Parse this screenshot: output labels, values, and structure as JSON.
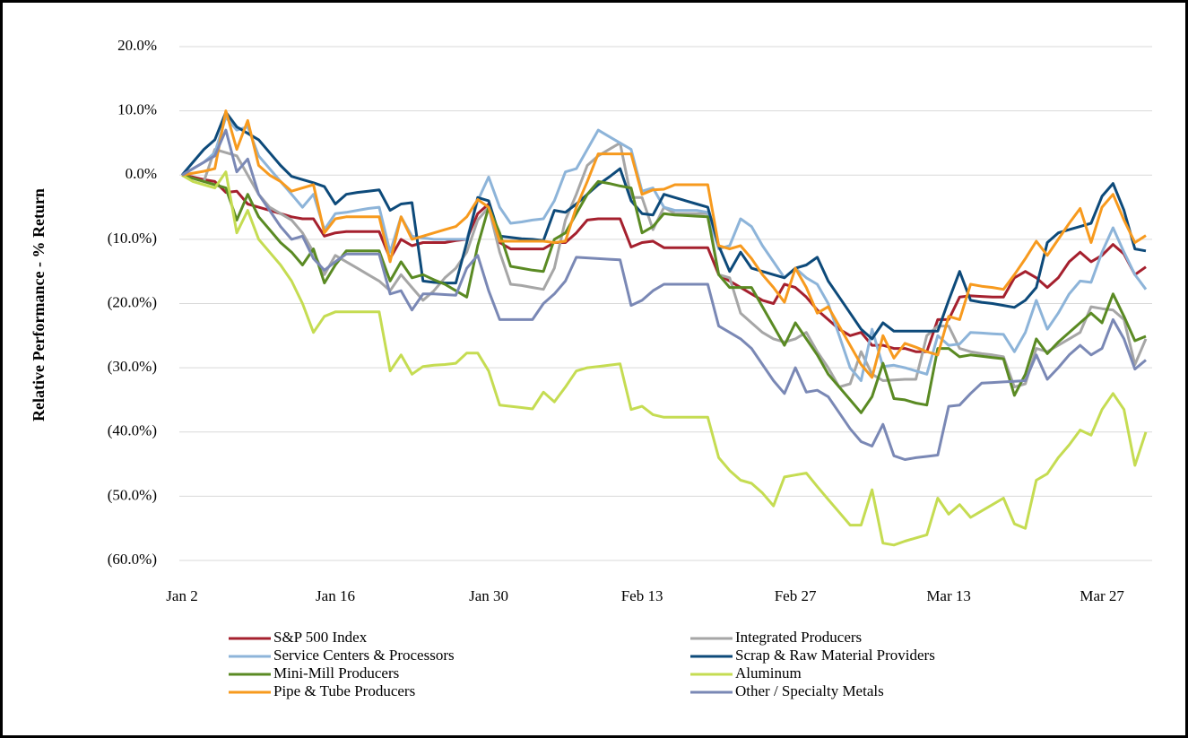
{
  "chart_data": {
    "type": "line",
    "y_label": "Relative Performance - % Return",
    "categories": [
      "Jan 2",
      null,
      null,
      null,
      null,
      null,
      null,
      null,
      null,
      null,
      null,
      null,
      null,
      null,
      "Jan 16",
      null,
      null,
      null,
      null,
      null,
      null,
      null,
      null,
      null,
      null,
      null,
      null,
      null,
      "Jan 30",
      null,
      null,
      null,
      null,
      null,
      null,
      null,
      null,
      null,
      null,
      null,
      null,
      null,
      "Feb 13",
      null,
      null,
      null,
      null,
      null,
      null,
      null,
      null,
      null,
      null,
      null,
      null,
      null,
      "Feb 27",
      null,
      null,
      null,
      null,
      null,
      null,
      null,
      null,
      null,
      null,
      null,
      null,
      null,
      "Mar 13",
      null,
      null,
      null,
      null,
      null,
      null,
      null,
      null,
      null,
      null,
      null,
      null,
      null,
      "Mar 27",
      null,
      null,
      null,
      null
    ],
    "ylim": [
      -60,
      20
    ],
    "yticks": [
      {
        "value": 20,
        "label": "20.0%"
      },
      {
        "value": 10,
        "label": "10.0%"
      },
      {
        "value": 0,
        "label": "0.0%"
      },
      {
        "value": -10,
        "label": "(10.0%)"
      },
      {
        "value": -20,
        "label": "(20.0%)"
      },
      {
        "value": -30,
        "label": "(30.0%)"
      },
      {
        "value": -40,
        "label": "(40.0%)"
      },
      {
        "value": -50,
        "label": "(50.0%)"
      },
      {
        "value": -60,
        "label": "(60.0%)"
      }
    ],
    "grid": true,
    "legend": "bottom",
    "series": [
      {
        "name": "S&P 500 Index",
        "color": "#a5202e",
        "values": [
          0,
          -0.3,
          -0.7,
          -1,
          -2.7,
          -2.5,
          -4.5,
          -5,
          -5.5,
          -6,
          -6.5,
          -6.8,
          -6.8,
          -9.5,
          -9,
          -8.8,
          -8.8,
          -8.8,
          -8.8,
          -13,
          -10,
          -11,
          -10.5,
          -10.5,
          -10.5,
          -10.2,
          -10,
          -6,
          -4.5,
          -10.5,
          -11.5,
          -11.5,
          -11.5,
          -11.5,
          -10.5,
          -10.5,
          -9,
          -7,
          -6.8,
          -6.8,
          -6.8,
          -11.2,
          -10.5,
          -10.3,
          -11.3,
          -11.3,
          -11.3,
          -11.3,
          -11.3,
          -15.5,
          -16.5,
          -17.5,
          -18.5,
          -19.5,
          -20,
          -17,
          -17.5,
          -19,
          -21,
          -22.5,
          -24,
          -25,
          -24.5,
          -26.5,
          -26.5,
          -27,
          -27,
          -27.5,
          -27.5,
          -22.5,
          -22.5,
          -19,
          -18.8,
          -18.9,
          -19,
          -19,
          -16,
          -15,
          -16,
          -17.5,
          -16,
          -13.5,
          -12,
          -13.5,
          -12.5,
          -10.8,
          -12.3,
          -15.5,
          -14.3
        ]
      },
      {
        "name": "Integrated Producers",
        "color": "#a6a6a6",
        "values": [
          0,
          -0.5,
          -1,
          4,
          3.5,
          3,
          0,
          -3,
          -5,
          -6,
          -7,
          -9,
          -12,
          -15.5,
          -12.5,
          -13.5,
          -14.5,
          -15.5,
          -16.5,
          -18,
          -15.5,
          -17.5,
          -19.5,
          -18,
          -16,
          -14.5,
          -12,
          -7,
          -5,
          -12,
          -17,
          -17.2,
          -17.5,
          -17.8,
          -14.5,
          -7,
          -3,
          1.5,
          3,
          4,
          5,
          -3.5,
          -3.5,
          -8.5,
          -5,
          -6,
          -6,
          -6,
          -6,
          -15.5,
          -16,
          -21.5,
          -23,
          -24.5,
          -25.5,
          -26,
          -25.5,
          -24.5,
          -27.5,
          -30,
          -33,
          -32.5,
          -27.5,
          -31,
          -32,
          -31.9,
          -31.8,
          -31.8,
          -25,
          -23.5,
          -23.5,
          -27,
          -27.5,
          -27.8,
          -28,
          -28.3,
          -33,
          -32.5,
          -27,
          -27.5,
          -26.5,
          -25.5,
          -24.5,
          -20.5,
          -20.8,
          -21,
          -22.5,
          -29.5,
          -25.5
        ]
      },
      {
        "name": "Service Centers & Processors",
        "color": "#8db4d9",
        "values": [
          0,
          1,
          2,
          3.5,
          9,
          7,
          7.5,
          3,
          1,
          -1,
          -3,
          -5,
          -3,
          -8.5,
          -6,
          -5.8,
          -5.5,
          -5.2,
          -5,
          -12,
          -6.5,
          -9.5,
          -9.8,
          -10,
          -10,
          -10,
          -10,
          -4,
          -0.3,
          -5,
          -7.5,
          -7.3,
          -7,
          -6.8,
          -4,
          0.5,
          1,
          4,
          7,
          6,
          5,
          4,
          -2.5,
          -2,
          -5,
          -5.5,
          -5.5,
          -5.5,
          -5.8,
          -11.5,
          -11,
          -6.8,
          -8,
          -11,
          -13.5,
          -16,
          -14.5,
          -16,
          -17,
          -20,
          -25,
          -30,
          -32,
          -24,
          -29.8,
          -29.6,
          -30,
          -30.5,
          -31,
          -25,
          -26.5,
          -26.3,
          -24.5,
          -24.6,
          -24.7,
          -24.8,
          -27.5,
          -24.5,
          -19.5,
          -24,
          -21.5,
          -18.5,
          -16.5,
          -16.7,
          -12,
          -8.2,
          -12,
          -15.5,
          -17.8
        ]
      },
      {
        "name": "Scrap & Raw Material Providers",
        "color": "#0d4a7a",
        "values": [
          0,
          2,
          4,
          5.5,
          9.8,
          7.5,
          6.5,
          5.5,
          3.5,
          1.5,
          -0.2,
          -0.7,
          -1.2,
          -1.8,
          -4.5,
          -3,
          -2.7,
          -2.5,
          -2.3,
          -5.5,
          -4.5,
          -4.3,
          -16.5,
          -16.7,
          -16.8,
          -16.8,
          -10.5,
          -3.5,
          -4,
          -9.5,
          -9.7,
          -9.9,
          -10,
          -10.2,
          -5.5,
          -5.8,
          -4.5,
          -3,
          -1.5,
          -0.3,
          1,
          -4,
          -6,
          -6.2,
          -3,
          -3.5,
          -4,
          -4.5,
          -5,
          -11,
          -15,
          -12,
          -14.5,
          -15,
          -15.5,
          -16,
          -14.5,
          -14,
          -12.8,
          -16.5,
          -19,
          -21.5,
          -24,
          -25.5,
          -23,
          -24.3,
          -24.3,
          -24.3,
          -24.3,
          -24.3,
          -19.5,
          -15,
          -19.5,
          -19.8,
          -20,
          -20.3,
          -20.6,
          -19.5,
          -17.5,
          -10.5,
          -9,
          -8.5,
          -8,
          -7.5,
          -3.3,
          -1.3,
          -5.5,
          -11.5,
          -11.8
        ]
      },
      {
        "name": "Mini-Mill Producers",
        "color": "#5a8a23",
        "values": [
          0,
          -0.5,
          -1,
          -1.5,
          -2,
          -7,
          -3,
          -6.5,
          -8.5,
          -10.5,
          -12,
          -14,
          -11.5,
          -16.8,
          -14,
          -11.8,
          -11.8,
          -11.8,
          -11.8,
          -16.5,
          -13.5,
          -16,
          -15.5,
          -16.3,
          -17,
          -18,
          -19,
          -11,
          -5,
          -9,
          -14.2,
          -14.5,
          -14.8,
          -15,
          -10,
          -9,
          -6,
          -3,
          -1,
          -1.3,
          -1.7,
          -2,
          -9,
          -8,
          -6,
          -6.2,
          -6.3,
          -6.4,
          -6.5,
          -15.5,
          -17.5,
          -17.5,
          -17.5,
          -20.5,
          -23.5,
          -26.5,
          -23,
          -25.5,
          -28,
          -31,
          -33,
          -35,
          -37,
          -34.5,
          -29.3,
          -34.8,
          -35,
          -35.5,
          -35.8,
          -27,
          -27,
          -28.3,
          -28,
          -28.2,
          -28.4,
          -28.6,
          -34.3,
          -31,
          -25.5,
          -27.8,
          -26,
          -24.5,
          -23,
          -21.5,
          -23,
          -18.5,
          -22,
          -25.8,
          -25.1
        ]
      },
      {
        "name": "Aluminum",
        "color": "#c5dc52",
        "values": [
          0,
          -1,
          -1.5,
          -2,
          0.5,
          -9,
          -5.5,
          -10,
          -12,
          -14,
          -16.5,
          -20,
          -24.5,
          -22,
          -21.3,
          -21.3,
          -21.3,
          -21.3,
          -21.3,
          -30.5,
          -28,
          -31,
          -29.8,
          -29.6,
          -29.5,
          -29.3,
          -27.7,
          -27.7,
          -30.5,
          -35.8,
          -36,
          -36.2,
          -36.4,
          -33.8,
          -35.3,
          -33,
          -30.5,
          -30,
          -29.8,
          -29.6,
          -29.4,
          -36.5,
          -36,
          -37.3,
          -37.7,
          -37.7,
          -37.7,
          -37.7,
          -37.7,
          -44,
          -46,
          -47.5,
          -48,
          -49.5,
          -51.5,
          -47,
          -46.7,
          -46.4,
          -48.5,
          -50.5,
          -52.5,
          -54.5,
          -54.5,
          -49,
          -57.3,
          -57.6,
          -57,
          -56.5,
          -56,
          -50.3,
          -52.8,
          -51.3,
          -53.3,
          -52.3,
          -51.3,
          -50.3,
          -54.3,
          -55,
          -47.5,
          -46.5,
          -44,
          -42,
          -39.7,
          -40.5,
          -36.5,
          -34,
          -36.5,
          -45.2,
          -40
        ]
      },
      {
        "name": "Pipe & Tube Producers",
        "color": "#f79a1e",
        "values": [
          0,
          0.3,
          0.6,
          1,
          10,
          4,
          8.5,
          1.5,
          0,
          -1,
          -2.5,
          -2,
          -1.5,
          -9,
          -6.8,
          -6.5,
          -6.5,
          -6.5,
          -6.5,
          -13.5,
          -6.5,
          -10,
          -9.5,
          -9,
          -8.5,
          -8,
          -6.5,
          -3.8,
          -5,
          -10.3,
          -10.3,
          -10.3,
          -10.3,
          -10.3,
          -10.5,
          -10.3,
          -5,
          -1,
          3.3,
          3.3,
          3.3,
          3.3,
          -3,
          -2.3,
          -2.2,
          -1.5,
          -1.5,
          -1.5,
          -1.5,
          -11,
          -11.5,
          -11,
          -13,
          -15.5,
          -17.5,
          -19.8,
          -14.5,
          -17.5,
          -21.5,
          -20.5,
          -23.5,
          -26.5,
          -29.5,
          -31.5,
          -25,
          -28.5,
          -26.2,
          -26.8,
          -27.5,
          -28,
          -22,
          -22.5,
          -17,
          -17.3,
          -17.5,
          -17.8,
          -15.5,
          -13,
          -10.3,
          -12.5,
          -10,
          -7.5,
          -5.2,
          -10.5,
          -5,
          -3,
          -7,
          -10.5,
          -9.4
        ]
      },
      {
        "name": "Other / Specialty Metals",
        "color": "#7a88b5",
        "values": [
          0,
          1,
          2,
          3,
          7,
          0.5,
          2.5,
          -3,
          -5.5,
          -8,
          -10,
          -9.5,
          -13,
          -14.8,
          -13.5,
          -12.3,
          -12.3,
          -12.3,
          -12.3,
          -18.5,
          -18,
          -21,
          -18.5,
          -18.5,
          -18.6,
          -18.7,
          -14.5,
          -12.5,
          -18,
          -22.5,
          -22.5,
          -22.5,
          -22.5,
          -20,
          -18.5,
          -16.5,
          -12.8,
          -12.9,
          -13,
          -13.1,
          -13.2,
          -20.3,
          -19.5,
          -18,
          -17,
          -17,
          -17,
          -17,
          -17,
          -23.5,
          -24.5,
          -25.5,
          -27,
          -29.5,
          -32,
          -34,
          -30,
          -33.8,
          -33.5,
          -34.5,
          -37,
          -39.5,
          -41.5,
          -42.2,
          -38.8,
          -43.7,
          -44.3,
          -44,
          -43.8,
          -43.6,
          -36,
          -35.8,
          -34,
          -32.4,
          -32.3,
          -32.2,
          -32.1,
          -32,
          -28,
          -31.8,
          -30,
          -28,
          -26.5,
          -28,
          -27,
          -22.5,
          -25.5,
          -30.2,
          -28.8
        ]
      }
    ]
  }
}
